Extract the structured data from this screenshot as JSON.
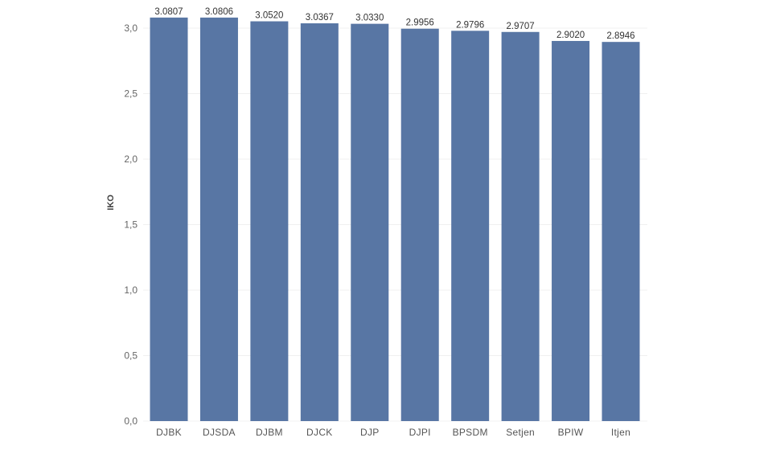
{
  "chart_data": {
    "type": "bar",
    "categories": [
      "DJBK",
      "DJSDA",
      "DJBM",
      "DJCK",
      "DJP",
      "DJPI",
      "BPSDM",
      "Setjen",
      "BPIW",
      "Itjen"
    ],
    "values": [
      3.0807,
      3.0806,
      3.052,
      3.0367,
      3.033,
      2.9956,
      2.9796,
      2.9707,
      2.902,
      2.8946
    ],
    "value_labels": [
      "3.0807",
      "3.0806",
      "3.0520",
      "3.0367",
      "3.0330",
      "2.9956",
      "2.9796",
      "2.9707",
      "2.9020",
      "2.8946"
    ],
    "title": "",
    "xlabel": "",
    "ylabel": "IKO",
    "ylim": [
      0,
      3.0
    ],
    "yticks": [
      0,
      0.5,
      1.0,
      1.5,
      2.0,
      2.5,
      3.0
    ],
    "ytick_labels": [
      "0,0",
      "0,5",
      "1,0",
      "1,5",
      "2,0",
      "2,5",
      "3,0"
    ],
    "grid": true,
    "bar_color": "#5876a4"
  }
}
